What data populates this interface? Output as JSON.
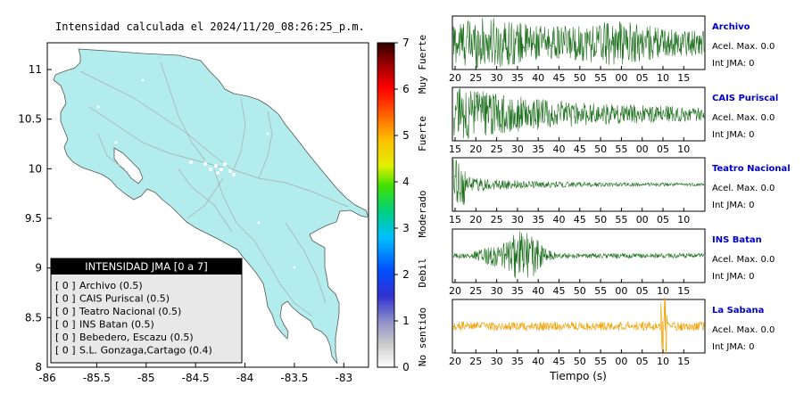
{
  "title": "Intensidad calculada el 2024/11/20_08:26:25_p.m.",
  "map": {
    "x_ticks": [
      "-86",
      "-85.5",
      "-85",
      "-84.5",
      "-84",
      "-83.5",
      "-83"
    ],
    "y_ticks": [
      "11",
      "10.5",
      "10",
      "9.5",
      "9",
      "8.5",
      "8"
    ]
  },
  "legend": {
    "header": "INTENSIDAD JMA [0 a 7]",
    "items": [
      {
        "prefix": "[ 0 ]",
        "label": "Archivo (0.5)"
      },
      {
        "prefix": "[ 0 ]",
        "label": "CAIS Puriscal (0.5)"
      },
      {
        "prefix": "[ 0 ]",
        "label": "Teatro Nacional (0.5)"
      },
      {
        "prefix": "[ 0 ]",
        "label": "INS Batan (0.5)"
      },
      {
        "prefix": "[ 0 ]",
        "label": "Bebedero, Escazu (0.5)"
      },
      {
        "prefix": "[ 0 ]",
        "label": "S.L. Gonzaga,Cartago (0.4)"
      }
    ]
  },
  "colorbar": {
    "ticks": [
      "7",
      "6",
      "5",
      "4",
      "3",
      "2",
      "1",
      "0"
    ],
    "categories": [
      "Muy Fuerte",
      "Fuerte",
      "Moderado",
      "Debil",
      "No sentido"
    ]
  },
  "chart_data": [
    {
      "type": "line",
      "title": "Archivo",
      "x_ticks": [
        "20",
        "25",
        "30",
        "35",
        "40",
        "45",
        "50",
        "55",
        "00",
        "05",
        "10",
        "15"
      ],
      "color": "#1a6e1a",
      "annotation": [
        "Acel. Max. 0.0",
        "Int JMA: 0"
      ]
    },
    {
      "type": "line",
      "title": "CAIS Puriscal",
      "x_ticks": [
        "15",
        "20",
        "25",
        "30",
        "35",
        "40",
        "45",
        "50",
        "55",
        "00",
        "05",
        "10"
      ],
      "color": "#1a6e1a",
      "annotation": [
        "Acel. Max. 0.0",
        "Int JMA: 0"
      ]
    },
    {
      "type": "line",
      "title": "Teatro Nacional",
      "x_ticks": [
        "15",
        "20",
        "25",
        "30",
        "35",
        "40",
        "45",
        "50",
        "55",
        "00",
        "05",
        "10"
      ],
      "color": "#1a6e1a",
      "annotation": [
        "Acel. Max. 0.0",
        "Int JMA: 0"
      ]
    },
    {
      "type": "line",
      "title": "INS Batan",
      "x_ticks": [
        "20",
        "25",
        "30",
        "35",
        "40",
        "45",
        "50",
        "55",
        "00",
        "05",
        "10",
        "15"
      ],
      "color": "#1a6e1a",
      "annotation": [
        "Acel. Max. 0.0",
        "Int JMA: 0"
      ]
    },
    {
      "type": "line",
      "title": "La Sabana",
      "x_ticks": [
        "20",
        "25",
        "30",
        "35",
        "40",
        "45",
        "50",
        "55",
        "00",
        "05",
        "10",
        "15"
      ],
      "color": "#f0a000",
      "annotation": [
        "Acel. Max. 0.0",
        "Int JMA: 0"
      ],
      "xlabel": "Tiempo (s)"
    }
  ]
}
